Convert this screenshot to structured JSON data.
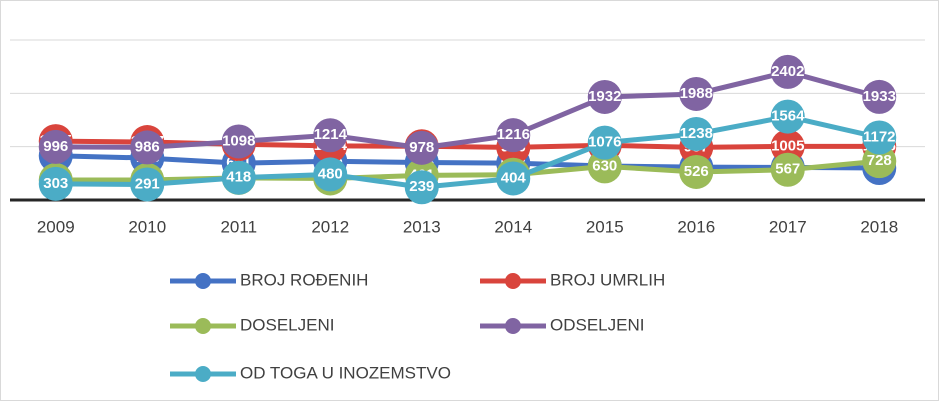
{
  "chart_data": {
    "type": "line",
    "categories": [
      "2009",
      "2010",
      "2011",
      "2012",
      "2013",
      "2014",
      "2015",
      "2016",
      "2017",
      "2018"
    ],
    "series": [
      {
        "name": "BROJ ROĐENIH",
        "color": "#4472c4",
        "values": [
          830,
          786,
          691,
          726,
          703,
          692,
          638,
          617,
          611,
          600
        ]
      },
      {
        "name": "BROJ UMRLIH",
        "color": "#d9443c",
        "values": [
          1105,
          1087,
          1046,
          1014,
          1008,
          986,
          1026,
          987,
          1005,
          1006
        ]
      },
      {
        "name": "DOSELJENI",
        "color": "#9bbb59",
        "values": [
          375,
          376,
          414,
          404,
          461,
          474,
          630,
          526,
          567,
          728
        ]
      },
      {
        "name": "ODSELJENI",
        "color": "#8064a2",
        "values": [
          996,
          986,
          1098,
          1214,
          978,
          1216,
          1932,
          1988,
          2402,
          1933
        ]
      },
      {
        "name": "OD TOGA U INOZEMSTVO",
        "color": "#4bacc6",
        "values": [
          303,
          291,
          418,
          480,
          239,
          404,
          1076,
          1238,
          1564,
          1172
        ]
      }
    ],
    "ylim": [
      0,
      3000
    ],
    "yticks": [
      0,
      1000,
      2000,
      3000
    ],
    "grid": true,
    "legend": "bottom"
  }
}
